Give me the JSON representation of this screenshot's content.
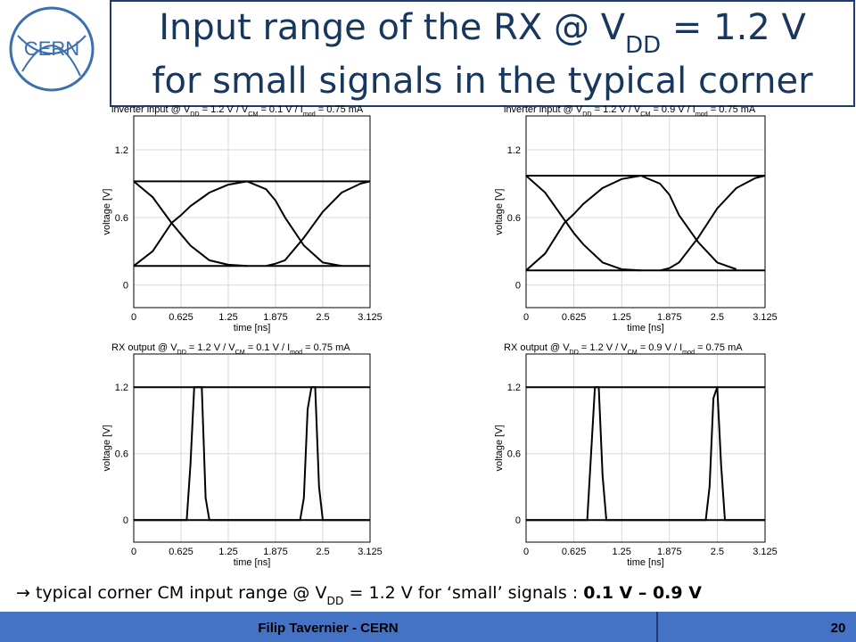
{
  "header": {
    "logo": "CERN",
    "title": [
      [
        {
          "text": "Input range of the RX @ V"
        },
        {
          "text": "DD",
          "sub": true
        },
        {
          "text": " = 1.2 V"
        }
      ],
      [
        {
          "text": "for small signals in the typical corner"
        }
      ]
    ]
  },
  "chart_data": [
    {
      "type": "line",
      "title": [
        {
          "text": "inverter input @ V"
        },
        {
          "text": "DD",
          "sub": true
        },
        {
          "text": " = 1.2 V / V"
        },
        {
          "text": "CM",
          "sub": true
        },
        {
          "text": " = 0.1 V / I"
        },
        {
          "text": "mod",
          "sub": true
        },
        {
          "text": " = 0.75 mA"
        }
      ],
      "x_label": "time [ns]",
      "y_label": "voltage [V]",
      "xlim": [
        0,
        3.125
      ],
      "xticks": [
        0,
        0.625,
        1.25,
        1.875,
        2.5,
        3.125
      ],
      "ylim": [
        -0.2,
        1.5
      ],
      "yticks": [
        0,
        0.6,
        1.2
      ],
      "grid": true,
      "x": [
        0,
        0.25,
        0.5,
        0.625,
        0.75,
        1,
        1.25,
        1.5,
        1.75,
        1.875,
        2,
        2.25,
        2.5,
        2.75,
        3,
        3.125
      ],
      "series": [
        {
          "color": "#000000",
          "values": [
            0.92,
            0.92,
            0.92,
            0.92,
            0.92,
            0.92,
            0.92,
            0.92,
            0.92,
            0.92,
            0.92,
            0.92,
            0.92,
            0.92,
            0.92,
            0.92
          ]
        },
        {
          "color": "#000000",
          "values": [
            0.17,
            0.17,
            0.17,
            0.17,
            0.17,
            0.17,
            0.17,
            0.17,
            0.17,
            0.17,
            0.17,
            0.17,
            0.17,
            0.17,
            0.17,
            0.17
          ]
        },
        {
          "color": "#000000",
          "values": [
            0.92,
            0.78,
            0.55,
            0.45,
            0.35,
            0.22,
            0.18,
            0.17,
            null,
            null,
            null,
            null,
            null,
            null,
            null,
            null
          ]
        },
        {
          "color": "#000000",
          "values": [
            0.17,
            0.3,
            0.55,
            0.62,
            0.7,
            0.82,
            0.89,
            0.92,
            null,
            null,
            null,
            null,
            null,
            null,
            null,
            null
          ]
        },
        {
          "color": "#000000",
          "values": [
            null,
            null,
            null,
            null,
            null,
            null,
            null,
            0.92,
            0.85,
            0.75,
            0.6,
            0.35,
            0.2,
            0.17,
            null,
            null
          ]
        },
        {
          "color": "#000000",
          "values": [
            null,
            null,
            null,
            null,
            null,
            null,
            null,
            null,
            0.17,
            0.19,
            0.22,
            0.42,
            0.65,
            0.82,
            0.9,
            0.92
          ]
        }
      ]
    },
    {
      "type": "line",
      "title": [
        {
          "text": "inverter input @ V"
        },
        {
          "text": "DD",
          "sub": true
        },
        {
          "text": " = 1.2 V / V"
        },
        {
          "text": "CM",
          "sub": true
        },
        {
          "text": " = 0.9 V / I"
        },
        {
          "text": "mod",
          "sub": true
        },
        {
          "text": " = 0.75 mA"
        }
      ],
      "x_label": "time [ns]",
      "y_label": "voltage [V]",
      "xlim": [
        0,
        3.125
      ],
      "xticks": [
        0,
        0.625,
        1.25,
        1.875,
        2.5,
        3.125
      ],
      "ylim": [
        -0.2,
        1.5
      ],
      "yticks": [
        0,
        0.6,
        1.2
      ],
      "grid": true,
      "x": [
        0,
        0.25,
        0.5,
        0.625,
        0.75,
        1,
        1.25,
        1.5,
        1.75,
        1.875,
        2,
        2.25,
        2.5,
        2.75,
        3,
        3.125
      ],
      "series": [
        {
          "color": "#000000",
          "values": [
            0.97,
            0.97,
            0.97,
            0.97,
            0.97,
            0.97,
            0.97,
            0.97,
            0.97,
            0.97,
            0.97,
            0.97,
            0.97,
            0.97,
            0.97,
            0.97
          ]
        },
        {
          "color": "#000000",
          "values": [
            0.13,
            0.13,
            0.13,
            0.13,
            0.13,
            0.13,
            0.13,
            0.13,
            0.13,
            0.13,
            0.13,
            0.13,
            0.13,
            0.13,
            0.13,
            0.13
          ]
        },
        {
          "color": "#000000",
          "values": [
            0.97,
            0.82,
            0.58,
            0.46,
            0.36,
            0.2,
            0.14,
            0.13,
            null,
            null,
            null,
            null,
            null,
            null,
            null,
            null
          ]
        },
        {
          "color": "#000000",
          "values": [
            0.13,
            0.28,
            0.55,
            0.63,
            0.72,
            0.86,
            0.94,
            0.97,
            null,
            null,
            null,
            null,
            null,
            null,
            null,
            null
          ]
        },
        {
          "color": "#000000",
          "values": [
            null,
            null,
            null,
            null,
            null,
            null,
            null,
            0.97,
            0.9,
            0.8,
            0.62,
            0.38,
            0.2,
            0.14,
            null,
            null
          ]
        },
        {
          "color": "#000000",
          "values": [
            null,
            null,
            null,
            null,
            null,
            null,
            null,
            null,
            0.13,
            0.15,
            0.2,
            0.42,
            0.68,
            0.86,
            0.95,
            0.97
          ]
        }
      ]
    },
    {
      "type": "line",
      "title": [
        {
          "text": "RX output @ V"
        },
        {
          "text": "DD",
          "sub": true
        },
        {
          "text": " = 1.2 V / V"
        },
        {
          "text": "CM",
          "sub": true
        },
        {
          "text": " = 0.1 V / I"
        },
        {
          "text": "mod",
          "sub": true
        },
        {
          "text": " = 0.75 mA"
        }
      ],
      "x_label": "time [ns]",
      "y_label": "voltage [V]",
      "xlim": [
        0,
        3.125
      ],
      "xticks": [
        0,
        0.625,
        1.25,
        1.875,
        2.5,
        3.125
      ],
      "ylim": [
        -0.2,
        1.5
      ],
      "yticks": [
        0,
        0.6,
        1.2
      ],
      "grid": true,
      "x": [
        0,
        0.625,
        0.7,
        0.75,
        0.8,
        0.85,
        0.9,
        0.95,
        1,
        1.25,
        1.875,
        2.2,
        2.25,
        2.3,
        2.35,
        2.4,
        2.45,
        2.5,
        2.625,
        3.125
      ],
      "series": [
        {
          "color": "#000000",
          "values": [
            1.2,
            1.2,
            1.2,
            1.2,
            1.2,
            1.2,
            1.2,
            1.2,
            1.2,
            1.2,
            1.2,
            1.2,
            1.2,
            1.2,
            1.2,
            1.2,
            1.2,
            1.2,
            1.2,
            1.2
          ]
        },
        {
          "color": "#000000",
          "values": [
            0,
            0,
            0,
            0,
            0,
            0,
            0,
            0,
            0,
            0,
            0,
            0,
            0,
            0,
            0,
            0,
            0,
            0,
            0,
            0
          ]
        },
        {
          "color": "#000000",
          "values": [
            0,
            0,
            0,
            0.5,
            1.2,
            1.2,
            1.2,
            0.2,
            0,
            0,
            0,
            0,
            0.2,
            1,
            1.2,
            1.2,
            0.3,
            0,
            0,
            0
          ]
        }
      ]
    },
    {
      "type": "line",
      "title": [
        {
          "text": "RX output @ V"
        },
        {
          "text": "DD",
          "sub": true
        },
        {
          "text": " = 1.2 V / V"
        },
        {
          "text": "CM",
          "sub": true
        },
        {
          "text": " = 0.9 V / I"
        },
        {
          "text": "mod",
          "sub": true
        },
        {
          "text": " = 0.75 mA"
        }
      ],
      "x_label": "time [ns]",
      "y_label": "voltage [V]",
      "xlim": [
        0,
        3.125
      ],
      "xticks": [
        0,
        0.625,
        1.25,
        1.875,
        2.5,
        3.125
      ],
      "ylim": [
        -0.2,
        1.5
      ],
      "yticks": [
        0,
        0.6,
        1.2
      ],
      "grid": true,
      "x": [
        0,
        0.625,
        0.8,
        0.85,
        0.9,
        0.95,
        1,
        1.05,
        1.25,
        1.875,
        2.3,
        2.35,
        2.4,
        2.45,
        2.5,
        2.55,
        2.6,
        3.125
      ],
      "series": [
        {
          "color": "#000000",
          "values": [
            1.2,
            1.2,
            1.2,
            1.2,
            1.2,
            1.2,
            1.2,
            1.2,
            1.2,
            1.2,
            1.2,
            1.2,
            1.2,
            1.2,
            1.2,
            1.2,
            1.2,
            1.2
          ]
        },
        {
          "color": "#000000",
          "values": [
            0,
            0,
            0,
            0,
            0,
            0,
            0,
            0,
            0,
            0,
            0,
            0,
            0,
            0,
            0,
            0,
            0,
            0
          ]
        },
        {
          "color": "#000000",
          "values": [
            0,
            0,
            0,
            0.6,
            1.2,
            1.2,
            0.4,
            0,
            0,
            0,
            0,
            0,
            0.3,
            1.1,
            1.2,
            0.5,
            0,
            0
          ]
        }
      ]
    }
  ],
  "note": [
    {
      "text": "→ typical corner CM input range @ V"
    },
    {
      "text": "DD",
      "sub": true
    },
    {
      "text": " = 1.2 V for ‘small’ signals : "
    },
    {
      "text": "0.1 V – 0.9 V",
      "bold": true
    }
  ],
  "footer": {
    "author": "Filip Tavernier - CERN",
    "page": "20"
  }
}
